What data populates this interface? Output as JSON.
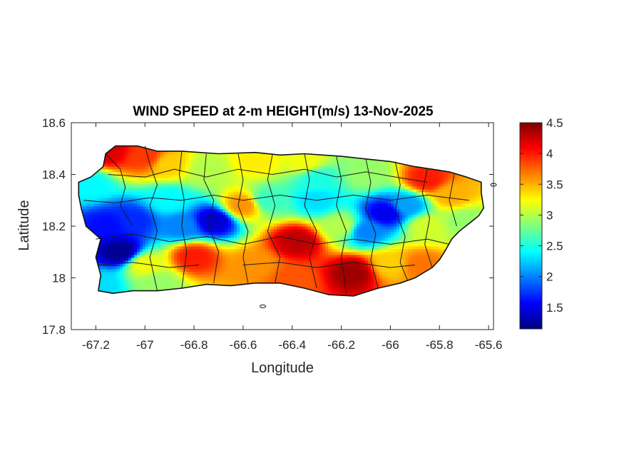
{
  "chart_data": {
    "type": "heatmap",
    "title": "WIND SPEED at 2-m HEIGHT(m/s) 13-Nov-2025",
    "xlabel": "Longitude",
    "ylabel": "Latitude",
    "xlim": [
      -67.3,
      -65.58
    ],
    "ylim": [
      17.8,
      18.6
    ],
    "x_ticks": [
      -67.2,
      -67,
      -66.8,
      -66.6,
      -66.4,
      -66.2,
      -66,
      -65.8,
      -65.6
    ],
    "x_tick_labels": [
      "-67.2",
      "-67",
      "-66.8",
      "-66.6",
      "-66.4",
      "-66.2",
      "-66",
      "-65.8",
      "-65.6"
    ],
    "y_ticks": [
      17.8,
      18,
      18.2,
      18.4,
      18.6
    ],
    "y_tick_labels": [
      "17.8",
      "18",
      "18.2",
      "18.4",
      "18.6"
    ],
    "colorbar": {
      "colormap": "jet",
      "range": [
        1.15,
        4.5
      ],
      "ticks": [
        1.5,
        2,
        2.5,
        3,
        3.5,
        4,
        4.5
      ],
      "tick_labels": [
        "1.5",
        "2",
        "2.5",
        "3",
        "3.5",
        "4",
        "4.5"
      ],
      "colors": [
        "#00007f",
        "#0000ff",
        "#007fff",
        "#00ffff",
        "#7fff7f",
        "#ffff00",
        "#ff7f00",
        "#ff0000",
        "#7f0000"
      ]
    },
    "grid": false,
    "wind_field_points": [
      {
        "lon": -67.1,
        "lat": 18.1,
        "value": 1.2
      },
      {
        "lon": -67.15,
        "lat": 18.2,
        "value": 1.6
      },
      {
        "lon": -67.05,
        "lat": 18.22,
        "value": 1.7
      },
      {
        "lon": -66.72,
        "lat": 18.22,
        "value": 1.4
      },
      {
        "lon": -66.85,
        "lat": 18.2,
        "value": 2.0
      },
      {
        "lon": -66.02,
        "lat": 18.25,
        "value": 1.5
      },
      {
        "lon": -66.1,
        "lat": 18.18,
        "value": 2.0
      },
      {
        "lon": -65.93,
        "lat": 18.28,
        "value": 2.1
      },
      {
        "lon": -67.23,
        "lat": 18.36,
        "value": 2.4
      },
      {
        "lon": -67.15,
        "lat": 18.49,
        "value": 4.2
      },
      {
        "lon": -67.0,
        "lat": 18.47,
        "value": 3.9
      },
      {
        "lon": -66.9,
        "lat": 18.44,
        "value": 3.4
      },
      {
        "lon": -66.75,
        "lat": 18.42,
        "value": 3.0
      },
      {
        "lon": -66.55,
        "lat": 18.45,
        "value": 3.3
      },
      {
        "lon": -66.35,
        "lat": 18.45,
        "value": 3.2
      },
      {
        "lon": -66.1,
        "lat": 18.4,
        "value": 2.9
      },
      {
        "lon": -65.85,
        "lat": 18.38,
        "value": 4.0
      },
      {
        "lon": -65.75,
        "lat": 18.32,
        "value": 3.5
      },
      {
        "lon": -65.7,
        "lat": 18.22,
        "value": 2.9
      },
      {
        "lon": -65.85,
        "lat": 18.2,
        "value": 3.1
      },
      {
        "lon": -66.3,
        "lat": 18.3,
        "value": 2.3
      },
      {
        "lon": -66.5,
        "lat": 18.3,
        "value": 2.6
      },
      {
        "lon": -66.6,
        "lat": 18.28,
        "value": 3.6
      },
      {
        "lon": -66.38,
        "lat": 18.14,
        "value": 4.3
      },
      {
        "lon": -66.15,
        "lat": 18.02,
        "value": 4.4
      },
      {
        "lon": -66.55,
        "lat": 18.05,
        "value": 3.6
      },
      {
        "lon": -66.8,
        "lat": 18.08,
        "value": 4.0
      },
      {
        "lon": -67.0,
        "lat": 18.05,
        "value": 3.2
      },
      {
        "lon": -66.4,
        "lat": 17.99,
        "value": 3.8
      },
      {
        "lon": -66.0,
        "lat": 18.05,
        "value": 3.4
      },
      {
        "lon": -65.88,
        "lat": 18.05,
        "value": 3.7
      },
      {
        "lon": -66.95,
        "lat": 17.98,
        "value": 2.9
      },
      {
        "lon": -67.18,
        "lat": 17.97,
        "value": 2.3
      },
      {
        "lon": -66.2,
        "lat": 18.2,
        "value": 3.0
      },
      {
        "lon": -66.3,
        "lat": 18.38,
        "value": 2.5
      },
      {
        "lon": -66.9,
        "lat": 18.3,
        "value": 2.4
      }
    ]
  }
}
